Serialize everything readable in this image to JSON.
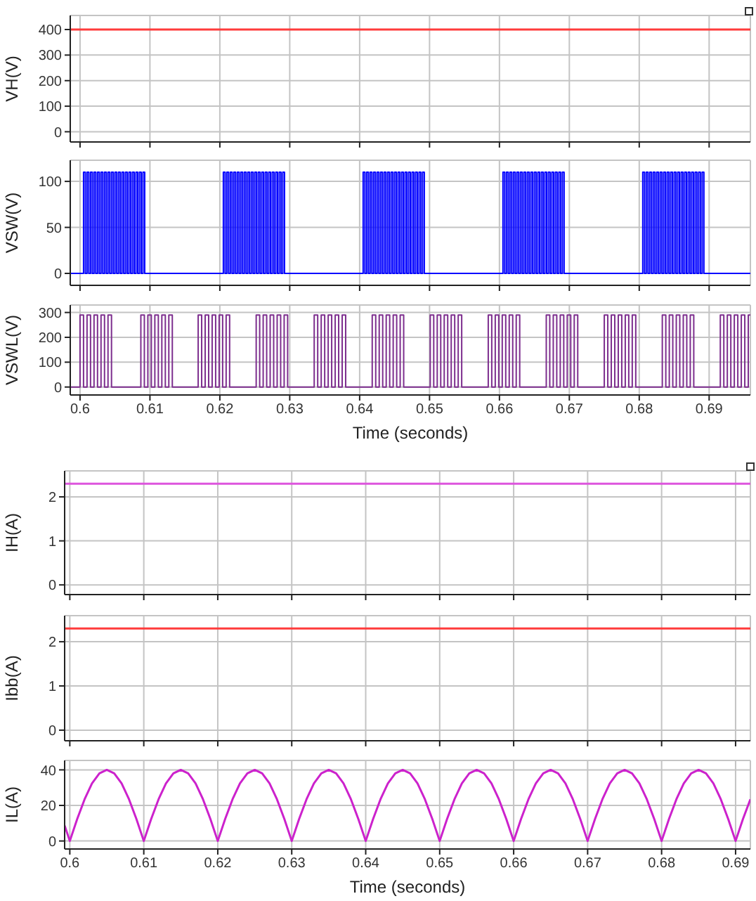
{
  "chart_data": [
    {
      "type": "line",
      "ylabel": "VH(V)",
      "color": "#ff3b3b",
      "x": [
        0.5986,
        0.6959
      ],
      "values": [
        400,
        400
      ],
      "xlim": [
        0.5986,
        0.6959
      ],
      "xticks": [
        0.6,
        0.61,
        0.62,
        0.63,
        0.64,
        0.65,
        0.66,
        0.67,
        0.68,
        0.69
      ],
      "ylim": [
        -40,
        455
      ],
      "yticks": [
        0,
        100,
        200,
        300,
        400
      ],
      "grid": true,
      "tick_labels": "y"
    },
    {
      "type": "step",
      "ylabel": "VSW(V)",
      "color": "#0000ff",
      "x": [
        0.5986,
        0.6005,
        0.60075,
        0.601,
        0.60125,
        0.6015,
        0.60175,
        0.602,
        0.60225,
        0.6025,
        0.60275,
        0.603,
        0.60325,
        0.6035,
        0.60375,
        0.604,
        0.60425,
        0.6045,
        0.60475,
        0.605,
        0.60525,
        0.6055,
        0.60575,
        0.606,
        0.60625,
        0.6065,
        0.60675,
        0.607,
        0.60725,
        0.6075,
        0.60775,
        0.608,
        0.60825,
        0.6085,
        0.60875,
        0.609,
        0.60925,
        0.6205,
        0.62075,
        0.621,
        0.62125,
        0.6215,
        0.62175,
        0.622,
        0.62225,
        0.6225,
        0.62275,
        0.623,
        0.62325,
        0.6235,
        0.62375,
        0.624,
        0.62425,
        0.6245,
        0.62475,
        0.625,
        0.62525,
        0.6255,
        0.62575,
        0.626,
        0.62625,
        0.6265,
        0.62675,
        0.627,
        0.62725,
        0.6275,
        0.62775,
        0.628,
        0.62825,
        0.6285,
        0.62875,
        0.629,
        0.62925,
        0.6405,
        0.64075,
        0.641,
        0.64125,
        0.6415,
        0.64175,
        0.642,
        0.64225,
        0.6425,
        0.64275,
        0.643,
        0.64325,
        0.6435,
        0.64375,
        0.644,
        0.64425,
        0.6445,
        0.64475,
        0.645,
        0.64525,
        0.6455,
        0.64575,
        0.646,
        0.64625,
        0.6465,
        0.64675,
        0.647,
        0.64725,
        0.6475,
        0.64775,
        0.648,
        0.64825,
        0.6485,
        0.64875,
        0.649,
        0.64925,
        0.6605,
        0.66075,
        0.661,
        0.66125,
        0.6615,
        0.66175,
        0.662,
        0.66225,
        0.6625,
        0.66275,
        0.663,
        0.66325,
        0.6635,
        0.66375,
        0.664,
        0.66425,
        0.6645,
        0.66475,
        0.665,
        0.66525,
        0.6655,
        0.66575,
        0.666,
        0.66625,
        0.6665,
        0.66675,
        0.667,
        0.66725,
        0.6675,
        0.66775,
        0.668,
        0.66825,
        0.6685,
        0.66875,
        0.669,
        0.66925,
        0.6805,
        0.68075,
        0.681,
        0.68125,
        0.6815,
        0.68175,
        0.682,
        0.68225,
        0.6825,
        0.68275,
        0.683,
        0.68325,
        0.6835,
        0.68375,
        0.684,
        0.68425,
        0.6845,
        0.68475,
        0.685,
        0.68525,
        0.6855,
        0.68575,
        0.686,
        0.68625,
        0.6865,
        0.68675,
        0.687,
        0.68725,
        0.6875,
        0.68775,
        0.688,
        0.68825,
        0.6885,
        0.68875,
        0.689,
        0.68925,
        0.6959
      ],
      "values": [
        0,
        110,
        0,
        110,
        0,
        110,
        0,
        110,
        0,
        110,
        0,
        110,
        0,
        110,
        0,
        110,
        0,
        110,
        0,
        110,
        0,
        110,
        0,
        110,
        0,
        110,
        0,
        110,
        0,
        110,
        0,
        110,
        0,
        110,
        0,
        110,
        0,
        110,
        0,
        110,
        0,
        110,
        0,
        110,
        0,
        110,
        0,
        110,
        0,
        110,
        0,
        110,
        0,
        110,
        0,
        110,
        0,
        110,
        0,
        110,
        0,
        110,
        0,
        110,
        0,
        110,
        0,
        110,
        0,
        110,
        0,
        110,
        0,
        110,
        0,
        110,
        0,
        110,
        0,
        110,
        0,
        110,
        0,
        110,
        0,
        110,
        0,
        110,
        0,
        110,
        0,
        110,
        0,
        110,
        0,
        110,
        0,
        110,
        0,
        110,
        0,
        110,
        0,
        110,
        0,
        110,
        0,
        110,
        0,
        110,
        0,
        110,
        0,
        110,
        0,
        110,
        0,
        110,
        0,
        110,
        0,
        110,
        0,
        110,
        0,
        110,
        0,
        110,
        0,
        110,
        0,
        110,
        0,
        110,
        0,
        110,
        0,
        110,
        0,
        110,
        0,
        110,
        0,
        110,
        0,
        110,
        0,
        110,
        0,
        110,
        0,
        110,
        0,
        110,
        0,
        110,
        0,
        110,
        0,
        110,
        0,
        110,
        0,
        110,
        0,
        110,
        0,
        110,
        0,
        110,
        0,
        110,
        0,
        110,
        0,
        110,
        0,
        110,
        0,
        110,
        0,
        0
      ],
      "xlim": [
        0.5986,
        0.6959
      ],
      "xticks": [
        0.6,
        0.61,
        0.62,
        0.63,
        0.64,
        0.65,
        0.66,
        0.67,
        0.68,
        0.69
      ],
      "ylim": [
        -13,
        123
      ],
      "yticks": [
        0,
        50,
        100
      ],
      "grid": true,
      "tick_labels": "y"
    },
    {
      "type": "step",
      "ylabel": "VSWL(V)",
      "xlabel": "Time (seconds)",
      "color": "#7d2e8e",
      "x": [
        0.5986,
        0.6,
        0.6005,
        0.601,
        0.6015,
        0.602,
        0.6025,
        0.603,
        0.6035,
        0.604,
        0.6045,
        0.6087,
        0.6092,
        0.6097,
        0.6102,
        0.6107,
        0.6112,
        0.6117,
        0.6122,
        0.6127,
        0.6132,
        0.6169,
        0.6174,
        0.6179,
        0.6184,
        0.6189,
        0.6194,
        0.6199,
        0.6204,
        0.6209,
        0.6214,
        0.6252,
        0.6257,
        0.6262,
        0.6267,
        0.6272,
        0.6277,
        0.6282,
        0.6287,
        0.6292,
        0.6297,
        0.6335,
        0.634,
        0.6345,
        0.635,
        0.6355,
        0.636,
        0.6365,
        0.637,
        0.6375,
        0.638,
        0.6418,
        0.6423,
        0.6428,
        0.6433,
        0.6438,
        0.6443,
        0.6448,
        0.6453,
        0.6458,
        0.6463,
        0.6501,
        0.6506,
        0.6511,
        0.6516,
        0.6521,
        0.6526,
        0.6531,
        0.6536,
        0.6541,
        0.6546,
        0.6584,
        0.6589,
        0.6594,
        0.6599,
        0.6604,
        0.6609,
        0.6614,
        0.6619,
        0.6624,
        0.6629,
        0.6667,
        0.6672,
        0.6677,
        0.6682,
        0.6687,
        0.6692,
        0.6697,
        0.6702,
        0.6707,
        0.6712,
        0.675,
        0.6755,
        0.676,
        0.6765,
        0.677,
        0.6775,
        0.678,
        0.6785,
        0.679,
        0.6795,
        0.6833,
        0.6838,
        0.6843,
        0.6848,
        0.6853,
        0.6858,
        0.6863,
        0.6868,
        0.6873,
        0.6878,
        0.6916,
        0.6921,
        0.6926,
        0.6931,
        0.6936,
        0.6941,
        0.6946,
        0.6951,
        0.6956,
        0.6959
      ],
      "values": [
        0,
        290,
        0,
        290,
        0,
        290,
        0,
        290,
        0,
        290,
        0,
        290,
        0,
        290,
        0,
        290,
        0,
        290,
        0,
        290,
        0,
        290,
        0,
        290,
        0,
        290,
        0,
        290,
        0,
        290,
        0,
        290,
        0,
        290,
        0,
        290,
        0,
        290,
        0,
        290,
        0,
        290,
        0,
        290,
        0,
        290,
        0,
        290,
        0,
        290,
        0,
        290,
        0,
        290,
        0,
        290,
        0,
        290,
        0,
        290,
        0,
        290,
        0,
        290,
        0,
        290,
        0,
        290,
        0,
        290,
        0,
        290,
        0,
        290,
        0,
        290,
        0,
        290,
        0,
        290,
        0,
        290,
        0,
        290,
        0,
        290,
        0,
        290,
        0,
        290,
        0,
        290,
        0,
        290,
        0,
        290,
        0,
        290,
        0,
        290,
        0,
        290,
        0,
        290,
        0,
        290,
        0,
        290,
        0,
        290,
        0,
        290,
        0,
        290,
        0,
        290,
        0,
        290,
        0,
        290,
        290
      ],
      "xlim": [
        0.5986,
        0.6959
      ],
      "xticks": [
        0.6,
        0.61,
        0.62,
        0.63,
        0.64,
        0.65,
        0.66,
        0.67,
        0.68,
        0.69
      ],
      "ylim": [
        -32,
        330
      ],
      "yticks": [
        0,
        100,
        200,
        300
      ],
      "grid": true
    },
    {
      "type": "line",
      "ylabel": "IH(A)",
      "color": "#dd55dd",
      "x": [
        0.5993,
        0.692
      ],
      "values": [
        2.3,
        2.3
      ],
      "xlim": [
        0.5993,
        0.692
      ],
      "xticks": [
        0.6,
        0.61,
        0.62,
        0.63,
        0.64,
        0.65,
        0.66,
        0.67,
        0.68,
        0.69
      ],
      "ylim": [
        -0.22,
        2.59
      ],
      "yticks": [
        0,
        1,
        2
      ],
      "grid": true,
      "tick_labels": "y"
    },
    {
      "type": "line",
      "ylabel": "Ibb(A)",
      "color": "#ff3b3b",
      "x": [
        0.5993,
        0.692
      ],
      "values": [
        2.3,
        2.3
      ],
      "xlim": [
        0.5993,
        0.692
      ],
      "xticks": [
        0.6,
        0.61,
        0.62,
        0.63,
        0.64,
        0.65,
        0.66,
        0.67,
        0.68,
        0.69
      ],
      "ylim": [
        -0.24,
        2.59
      ],
      "yticks": [
        0,
        1,
        2
      ],
      "grid": true,
      "tick_labels": "y"
    },
    {
      "type": "line",
      "ylabel": "IL(A)",
      "xlabel": "Time (seconds)",
      "color": "#cc22cc",
      "x": [
        0.5993,
        0.6,
        0.601,
        0.602,
        0.603,
        0.604,
        0.605,
        0.606,
        0.607,
        0.608,
        0.609,
        0.61,
        0.611,
        0.612,
        0.613,
        0.614,
        0.615,
        0.616,
        0.617,
        0.618,
        0.619,
        0.62,
        0.621,
        0.622,
        0.623,
        0.624,
        0.625,
        0.626,
        0.627,
        0.628,
        0.629,
        0.63,
        0.631,
        0.632,
        0.633,
        0.634,
        0.635,
        0.636,
        0.637,
        0.638,
        0.639,
        0.64,
        0.641,
        0.642,
        0.643,
        0.644,
        0.645,
        0.646,
        0.647,
        0.648,
        0.649,
        0.65,
        0.651,
        0.652,
        0.653,
        0.654,
        0.655,
        0.656,
        0.657,
        0.658,
        0.659,
        0.66,
        0.661,
        0.662,
        0.663,
        0.664,
        0.665,
        0.666,
        0.667,
        0.668,
        0.669,
        0.67,
        0.671,
        0.672,
        0.673,
        0.674,
        0.675,
        0.676,
        0.677,
        0.678,
        0.679,
        0.68,
        0.681,
        0.682,
        0.683,
        0.684,
        0.685,
        0.686,
        0.687,
        0.688,
        0.689,
        0.69,
        0.691,
        0.692
      ],
      "values": [
        8.7,
        0,
        12.4,
        23.5,
        32.4,
        38,
        40,
        38,
        32.4,
        23.5,
        12.4,
        0,
        12.4,
        23.5,
        32.4,
        38,
        40,
        38,
        32.4,
        23.5,
        12.4,
        0,
        12.4,
        23.5,
        32.4,
        38,
        40,
        38,
        32.4,
        23.5,
        12.4,
        0,
        12.4,
        23.5,
        32.4,
        38,
        40,
        38,
        32.4,
        23.5,
        12.4,
        0,
        12.4,
        23.5,
        32.4,
        38,
        40,
        38,
        32.4,
        23.5,
        12.4,
        0,
        12.4,
        23.5,
        32.4,
        38,
        40,
        38,
        32.4,
        23.5,
        12.4,
        0,
        12.4,
        23.5,
        32.4,
        38,
        40,
        38,
        32.4,
        23.5,
        12.4,
        0,
        12.4,
        23.5,
        32.4,
        38,
        40,
        38,
        32.4,
        23.5,
        12.4,
        0,
        12.4,
        23.5,
        32.4,
        38,
        40,
        38,
        32.4,
        23.5,
        12.4,
        0,
        12.4,
        23.5
      ],
      "xlim": [
        0.5993,
        0.692
      ],
      "xticks": [
        0.6,
        0.61,
        0.62,
        0.63,
        0.64,
        0.65,
        0.66,
        0.67,
        0.68,
        0.69
      ],
      "ylim": [
        -4.5,
        45.3
      ],
      "yticks": [
        0,
        20,
        40
      ],
      "grid": true
    }
  ]
}
